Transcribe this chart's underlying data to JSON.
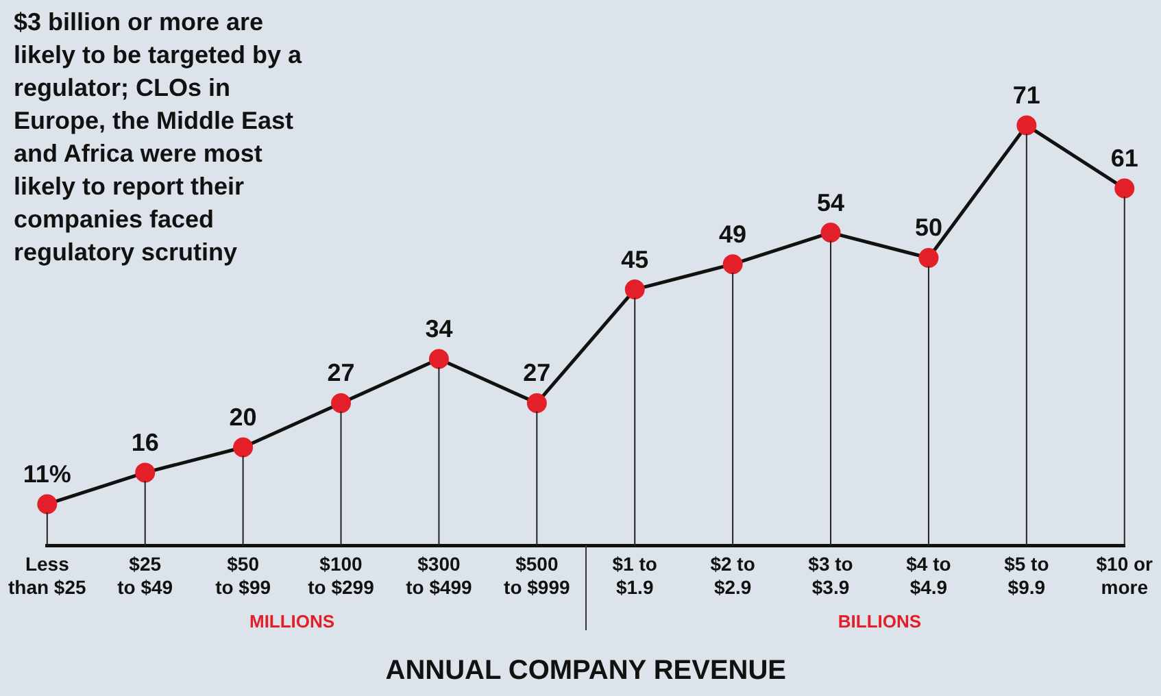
{
  "chart_data": {
    "type": "line",
    "xlabel": "ANNUAL COMPANY REVENUE",
    "annotations": [
      "$3 billion or more are likely to be targeted by a regulator; CLOs in Europe, the Middle East and Africa were most likely to report their companies faced regulatory scrutiny",
      "MILLIONS",
      "BILLIONS"
    ],
    "categories": [
      "Less than $25",
      "$25 to $49",
      "$50 to $99",
      "$100 to $299",
      "$300 to $499",
      "$500 to $999",
      "$1 to $1.9",
      "$2 to $2.9",
      "$3 to $3.9",
      "$4 to $4.9",
      "$5 to $9.9",
      "$10 or more"
    ],
    "series": [
      {
        "color": "#111111",
        "colors": [
          "#e3202a",
          "#e3202a",
          "#e3202a",
          "#e3202a",
          "#e3202a",
          "#e3202a",
          "#e3202a",
          "#e3202a",
          "#e3202a",
          "#e3202a",
          "#e3202a",
          "#e3202a"
        ],
        "values": [
          11,
          16,
          20,
          27,
          34,
          27,
          45,
          49,
          54,
          50,
          71,
          61
        ],
        "value_labels": [
          "11%",
          "16",
          "20",
          "27",
          "34",
          "27",
          "45",
          "49",
          "54",
          "50",
          "71",
          "61"
        ]
      }
    ],
    "marker": "circle",
    "line_style": "solid",
    "legend": false,
    "grid": "x",
    "tick_labels": "x"
  }
}
